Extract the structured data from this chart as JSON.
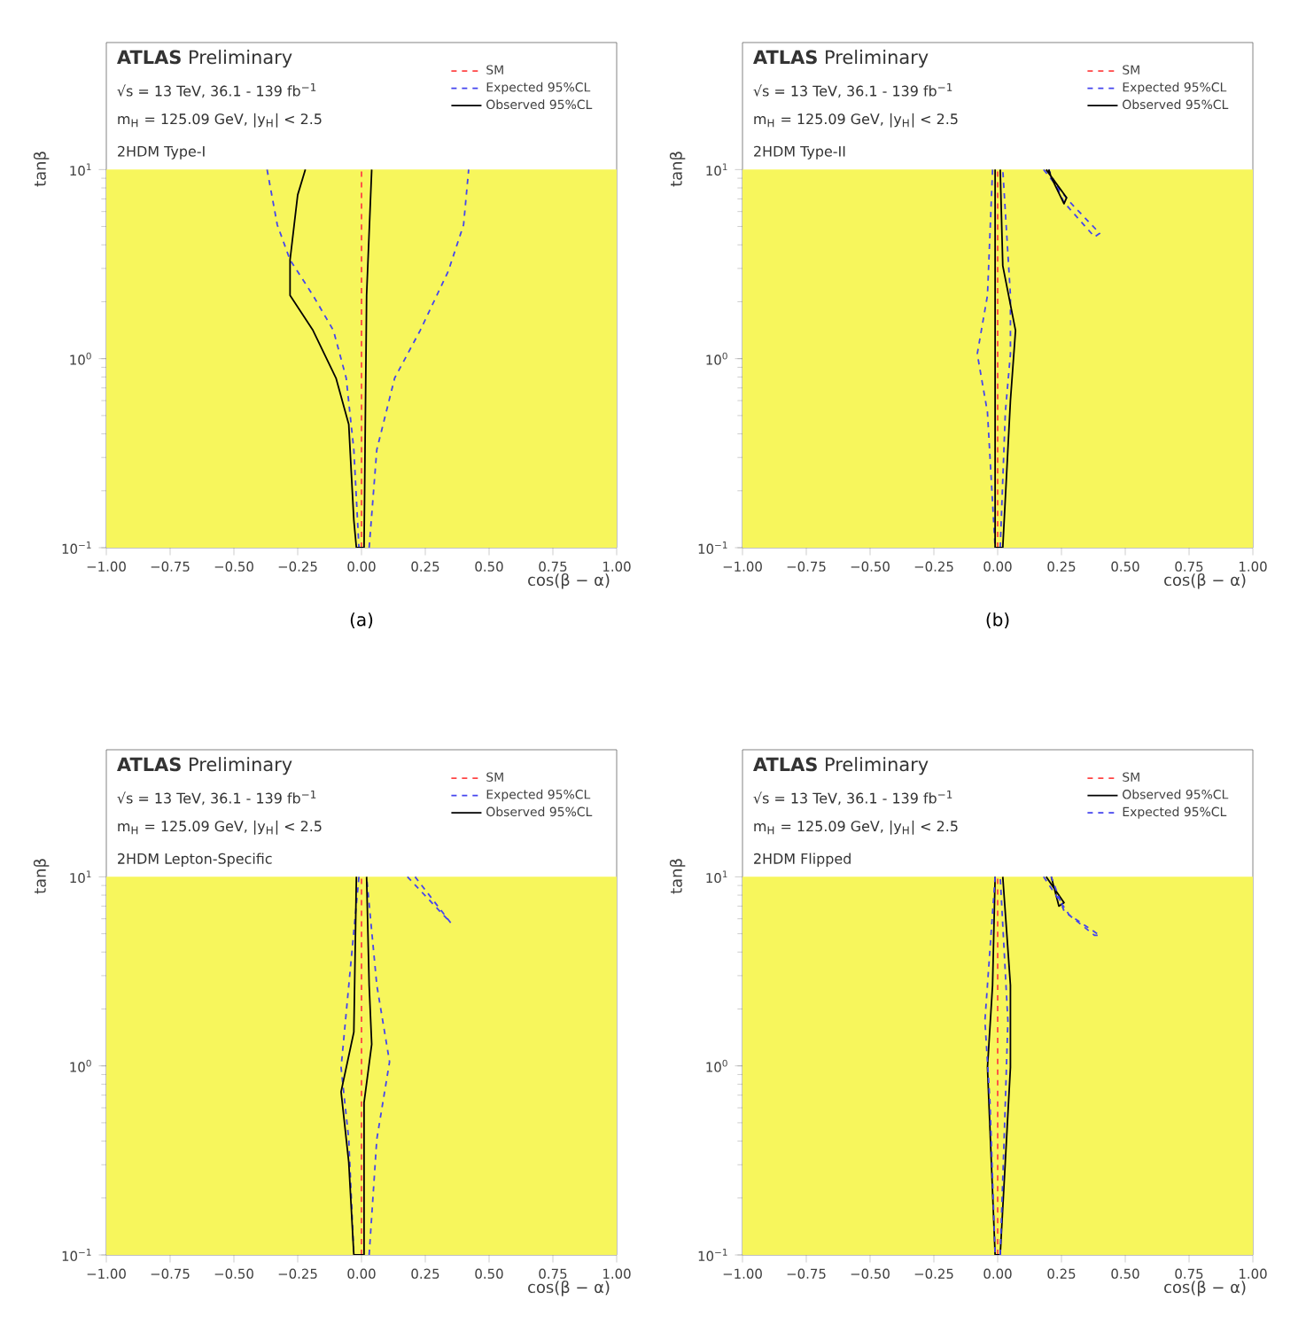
{
  "chart_data": [
    {
      "type": "line",
      "xlabel": "cos(β − α)",
      "ylabel": "tanβ",
      "log": "y",
      "legend": "top right",
      "xlim": [
        -1,
        1
      ],
      "ylim": [
        0.1,
        47
      ],
      "xticks": [
        {
          "value": -1,
          "label": "−1.00"
        },
        {
          "value": -0.75,
          "label": "−0.75"
        },
        {
          "value": -0.5,
          "label": "−0.50"
        },
        {
          "value": -0.25,
          "label": "−0.25"
        },
        {
          "value": 0,
          "label": "0.00"
        },
        {
          "value": 0.25,
          "label": "0.25"
        },
        {
          "value": 0.5,
          "label": "0.50"
        },
        {
          "value": 0.75,
          "label": "0.75"
        },
        {
          "value": 1,
          "label": "1.00"
        }
      ],
      "yticks": [
        {
          "value": 0.1,
          "label": "10$^{−1}$"
        },
        {
          "value": 1,
          "label": "10$^{0}$"
        },
        {
          "value": 10,
          "label": "10$^{1}$"
        }
      ],
      "bands": [
        {
          "axis": "y",
          "from": 0.1,
          "to": 10,
          "color": "#f7f65c"
        }
      ],
      "annotations": [
        "**ATLAS** Preliminary",
        "√s = 13 TeV, 36.1 - 139 fb$^{−1}$",
        "m$_{H}$ = 125.09 GeV, |y$_{H}$| < 2.5",
        "2HDM Type-I",
        "(a)"
      ],
      "series": [
        {
          "name": "SM",
          "type": "line",
          "color": "#ff4444",
          "line_style": "dashed",
          "x": [
            0,
            0
          ],
          "values": [
            0.1,
            10
          ]
        },
        {
          "name": "Expected 95%CL",
          "type": "line",
          "color": "#4444ee",
          "line_style": "dashed",
          "x": [
            -0.37,
            -0.33,
            -0.28,
            -0.19,
            -0.11,
            -0.06,
            -0.03,
            -0.01,
            null,
            0.03,
            0.06,
            0.13,
            0.23,
            0.34,
            0.4,
            0.42
          ],
          "values": [
            10,
            5.1,
            3.33,
            2.16,
            1.41,
            0.79,
            0.33,
            0.1,
            null,
            0.1,
            0.33,
            0.79,
            1.41,
            2.9,
            5.1,
            10
          ]
        },
        {
          "name": "Observed 95%CL",
          "type": "line",
          "color": "#000000",
          "line_style": "solid",
          "x": [
            -0.22,
            -0.25,
            -0.28,
            -0.28,
            -0.19,
            -0.1,
            -0.05,
            -0.04,
            -0.03,
            -0.02,
            0.01,
            0.02,
            0.04
          ],
          "values": [
            10,
            7.35,
            3.33,
            2.16,
            1.41,
            0.79,
            0.45,
            0.25,
            0.14,
            0.1,
            0.1,
            2.16,
            10
          ]
        }
      ]
    },
    {
      "type": "line",
      "xlabel": "cos(β − α)",
      "ylabel": "tanβ",
      "log": "y",
      "legend": "top right",
      "xlim": [
        -1,
        1
      ],
      "ylim": [
        0.1,
        47
      ],
      "xticks": [
        {
          "value": -1,
          "label": "−1.00"
        },
        {
          "value": -0.75,
          "label": "−0.75"
        },
        {
          "value": -0.5,
          "label": "−0.50"
        },
        {
          "value": -0.25,
          "label": "−0.25"
        },
        {
          "value": 0,
          "label": "0.00"
        },
        {
          "value": 0.25,
          "label": "0.25"
        },
        {
          "value": 0.5,
          "label": "0.50"
        },
        {
          "value": 0.75,
          "label": "0.75"
        },
        {
          "value": 1,
          "label": "1.00"
        }
      ],
      "yticks": [
        {
          "value": 0.1,
          "label": "10$^{−1}$"
        },
        {
          "value": 1,
          "label": "10$^{0}$"
        },
        {
          "value": 10,
          "label": "10$^{1}$"
        }
      ],
      "bands": [
        {
          "axis": "y",
          "from": 0.1,
          "to": 10,
          "color": "#f7f65c"
        }
      ],
      "annotations": [
        "**ATLAS** Preliminary",
        "√s = 13 TeV, 36.1 - 139 fb$^{−1}$",
        "m$_{H}$ = 125.09 GeV, |y$_{H}$| < 2.5",
        "2HDM Type-II",
        "(b)"
      ],
      "series": [
        {
          "name": "SM",
          "type": "line",
          "color": "#ff4444",
          "line_style": "dashed",
          "x": [
            0,
            0
          ],
          "values": [
            0.1,
            10
          ]
        },
        {
          "name": "Expected 95%CL",
          "type": "line",
          "color": "#4444ee",
          "line_style": "dashed",
          "x": [
            -0.02,
            -0.04,
            -0.08,
            -0.04,
            -0.01,
            null,
            0.01,
            0.03,
            0.05,
            0.05,
            0.02,
            null,
            0.18,
            0.28,
            0.4,
            0.38,
            0.26,
            0.2
          ],
          "values": [
            10,
            2.16,
            1.06,
            0.52,
            0.1,
            null,
            0.1,
            0.52,
            1.06,
            2.16,
            10,
            null,
            10,
            6.8,
            4.6,
            4.4,
            6.7,
            10
          ]
        },
        {
          "name": "Observed 95%CL",
          "type": "line",
          "color": "#000000",
          "line_style": "solid",
          "x": [
            -0.01,
            -0.01,
            0.02,
            0.05,
            0.07,
            0.02,
            0.01,
            null,
            0.19,
            0.27,
            0.26,
            0.21,
            0.2
          ],
          "values": [
            10,
            0.1,
            0.1,
            0.6,
            1.41,
            3.1,
            10,
            null,
            10,
            7.1,
            6.6,
            9.1,
            10
          ]
        }
      ]
    },
    {
      "type": "line",
      "xlabel": "cos(β − α)",
      "ylabel": "tanβ",
      "log": "y",
      "legend": "top right",
      "xlim": [
        -1,
        1
      ],
      "ylim": [
        0.1,
        47
      ],
      "xticks": [
        {
          "value": -1,
          "label": "−1.00"
        },
        {
          "value": -0.75,
          "label": "−0.75"
        },
        {
          "value": -0.5,
          "label": "−0.50"
        },
        {
          "value": -0.25,
          "label": "−0.25"
        },
        {
          "value": 0,
          "label": "0.00"
        },
        {
          "value": 0.25,
          "label": "0.25"
        },
        {
          "value": 0.5,
          "label": "0.50"
        },
        {
          "value": 0.75,
          "label": "0.75"
        },
        {
          "value": 1,
          "label": "1.00"
        }
      ],
      "yticks": [
        {
          "value": 0.1,
          "label": "10$^{−1}$"
        },
        {
          "value": 1,
          "label": "10$^{0}$"
        },
        {
          "value": 10,
          "label": "10$^{1}$"
        }
      ],
      "bands": [
        {
          "axis": "y",
          "from": 0.1,
          "to": 10,
          "color": "#f7f65c"
        }
      ],
      "annotations": [
        "**ATLAS** Preliminary",
        "√s = 13 TeV, 36.1 - 139 fb$^{−1}$",
        "m$_{H}$ = 125.09 GeV, |y$_{H}$| < 2.5",
        "2HDM Lepton-Specific"
      ],
      "series": [
        {
          "name": "SM",
          "type": "line",
          "color": "#ff4444",
          "line_style": "dashed",
          "x": [
            0,
            0
          ],
          "values": [
            0.1,
            10
          ]
        },
        {
          "name": "Expected 95%CL",
          "type": "line",
          "color": "#4444ee",
          "line_style": "dashed",
          "x": [
            -0.01,
            -0.08,
            -0.05,
            -0.03,
            null,
            0.03,
            0.06,
            0.11,
            0.06,
            0.02,
            null,
            0.18,
            0.34,
            0.35,
            0.21
          ],
          "values": [
            10,
            0.98,
            0.41,
            0.1,
            null,
            0.1,
            0.41,
            1.05,
            2.67,
            10,
            null,
            10,
            5.9,
            5.7,
            10
          ]
        },
        {
          "name": "Observed 95%CL",
          "type": "line",
          "color": "#000000",
          "line_style": "solid",
          "x": [
            -0.02,
            -0.03,
            -0.08,
            -0.05,
            -0.03,
            0.01,
            0.01,
            0.04,
            0.03,
            0.02
          ],
          "values": [
            10,
            1.51,
            0.73,
            0.31,
            0.1,
            0.1,
            0.64,
            1.3,
            2.67,
            10
          ]
        }
      ]
    },
    {
      "type": "line",
      "xlabel": "cos(β − α)",
      "ylabel": "tanβ",
      "log": "y",
      "legend": "top right",
      "xlim": [
        -1,
        1
      ],
      "ylim": [
        0.1,
        47
      ],
      "xticks": [
        {
          "value": -1,
          "label": "−1.00"
        },
        {
          "value": -0.75,
          "label": "−0.75"
        },
        {
          "value": -0.5,
          "label": "−0.50"
        },
        {
          "value": -0.25,
          "label": "−0.25"
        },
        {
          "value": 0,
          "label": "0.00"
        },
        {
          "value": 0.25,
          "label": "0.25"
        },
        {
          "value": 0.5,
          "label": "0.50"
        },
        {
          "value": 0.75,
          "label": "0.75"
        },
        {
          "value": 1,
          "label": "1.00"
        }
      ],
      "yticks": [
        {
          "value": 0.1,
          "label": "10$^{−1}$"
        },
        {
          "value": 1,
          "label": "10$^{0}$"
        },
        {
          "value": 10,
          "label": "10$^{1}$"
        }
      ],
      "bands": [
        {
          "axis": "y",
          "from": 0.1,
          "to": 10,
          "color": "#f7f65c"
        }
      ],
      "annotations": [
        "**ATLAS** Preliminary",
        "√s = 13 TeV, 36.1 - 139 fb$^{−1}$",
        "m$_{H}$ = 125.09 GeV, |y$_{H}$| < 2.5",
        "2HDM Flipped"
      ],
      "series": [
        {
          "name": "SM",
          "type": "line",
          "color": "#ff4444",
          "line_style": "dashed",
          "x": [
            0,
            0
          ],
          "values": [
            0.1,
            10
          ]
        },
        {
          "name": "Observed 95%CL",
          "type": "line",
          "color": "#000000",
          "line_style": "solid",
          "x": [
            -0.01,
            -0.02,
            -0.04,
            -0.01,
            0.01,
            0.05,
            0.05,
            0.02,
            null,
            0.19,
            0.26,
            0.24,
            0.21
          ],
          "values": [
            10,
            2.67,
            0.98,
            0.1,
            0.1,
            0.98,
            2.67,
            10,
            null,
            10,
            7.3,
            7.0,
            10
          ]
        },
        {
          "name": "Expected 95%CL",
          "type": "line",
          "color": "#4444ee",
          "line_style": "dashed",
          "x": [
            -0.01,
            -0.05,
            -0.03,
            -0.01,
            null,
            0.01,
            0.03,
            0.04,
            0.01,
            null,
            0.18,
            0.28,
            0.4,
            0.38,
            0.26,
            0.21
          ],
          "values": [
            10,
            1.73,
            0.64,
            0.1,
            null,
            0.1,
            0.64,
            1.73,
            10,
            null,
            10,
            6.3,
            4.9,
            4.9,
            6.6,
            10
          ]
        }
      ]
    }
  ]
}
